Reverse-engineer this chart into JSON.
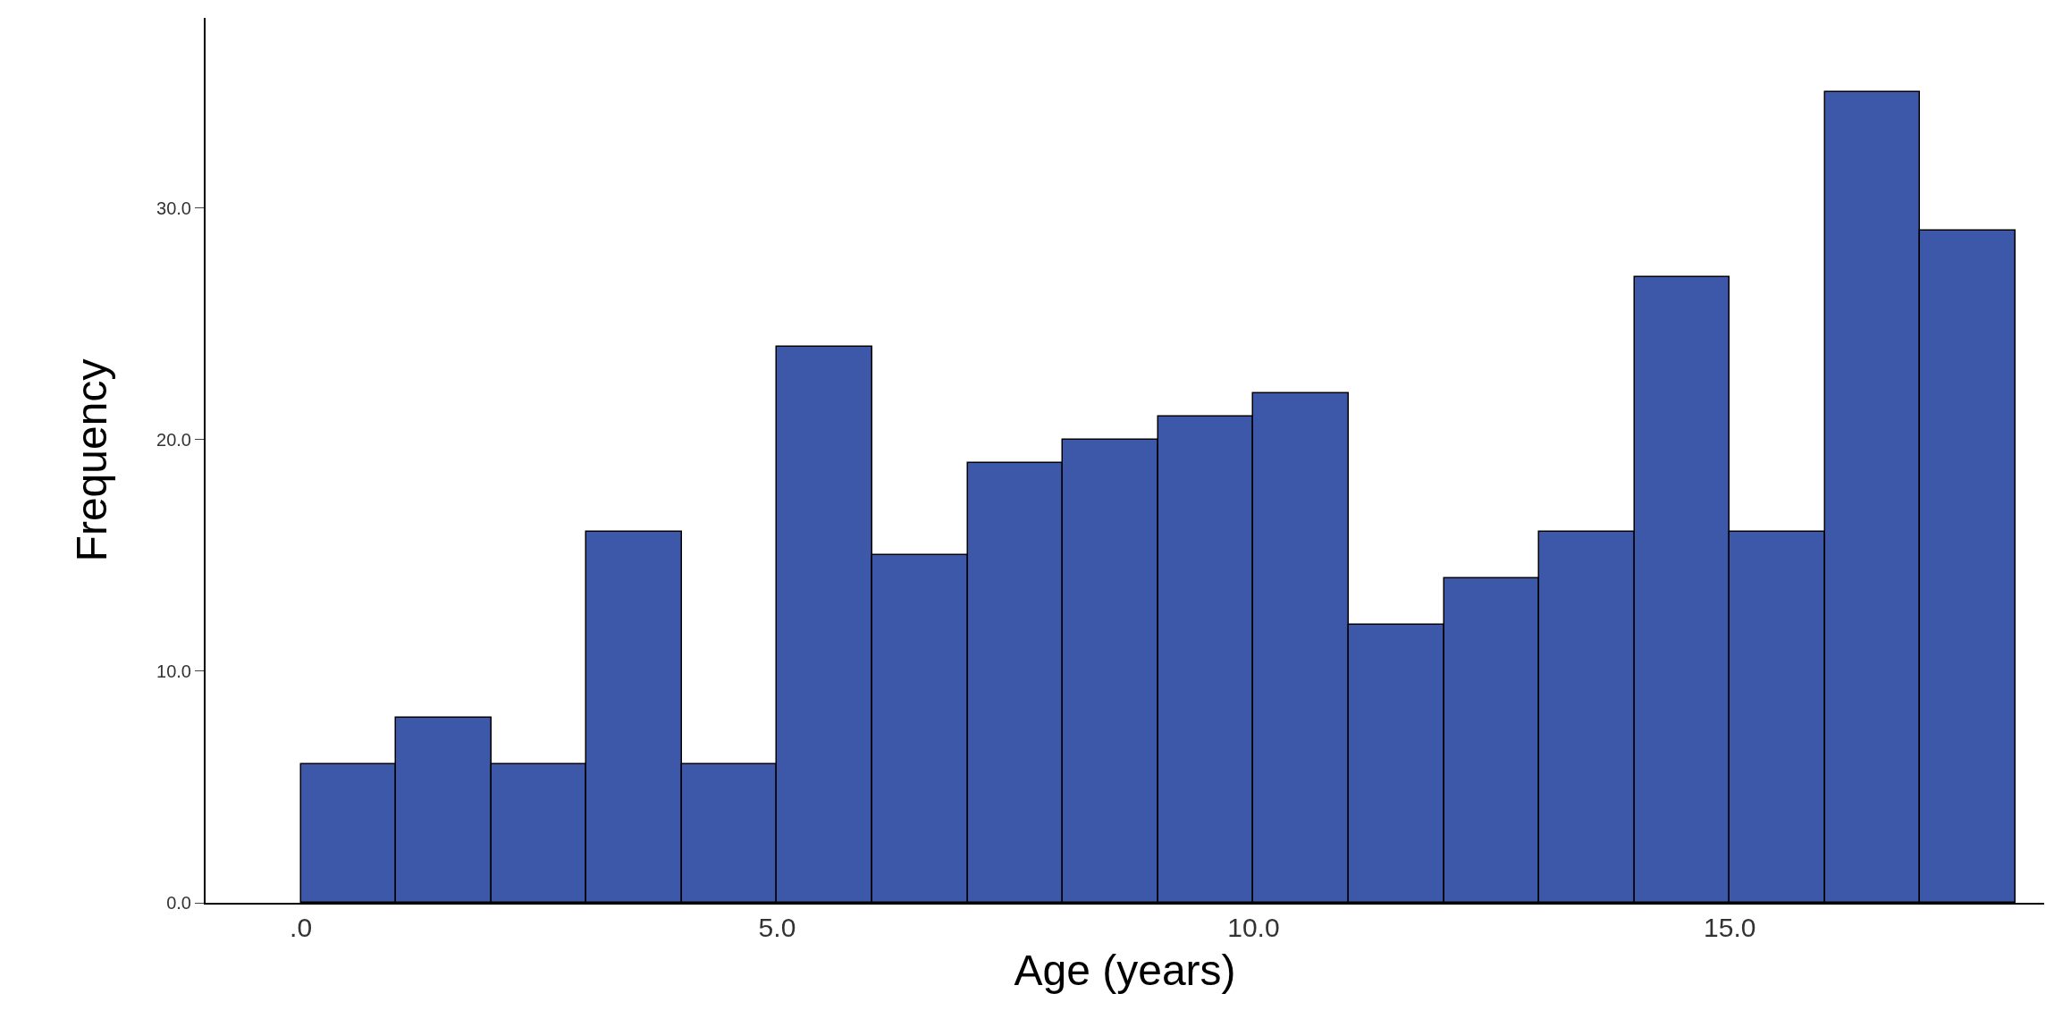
{
  "chart_data": {
    "type": "histogram",
    "xlabel": "Age (years)",
    "ylabel": "Frequency",
    "bins": [
      0,
      1,
      2,
      3,
      4,
      5,
      6,
      7,
      8,
      9,
      10,
      11,
      12,
      13,
      14,
      15,
      16,
      17,
      18
    ],
    "values": [
      6,
      8,
      6,
      16,
      6,
      24,
      15,
      19,
      20,
      21,
      22,
      12,
      14,
      16,
      27,
      16,
      35,
      29
    ],
    "color": "#3d58a8",
    "xlim": [
      -1,
      18.3
    ],
    "ylim": [
      0,
      38.2
    ],
    "xticks": [
      {
        "value": 0,
        "label": ".0"
      },
      {
        "value": 5,
        "label": "5.0"
      },
      {
        "value": 10,
        "label": "10.0"
      },
      {
        "value": 15,
        "label": "15.0"
      }
    ],
    "yticks": [
      {
        "value": 0,
        "label": "0.0"
      },
      {
        "value": 10,
        "label": "10.0"
      },
      {
        "value": 20,
        "label": "20.0"
      },
      {
        "value": 30,
        "label": "30.0"
      }
    ]
  }
}
